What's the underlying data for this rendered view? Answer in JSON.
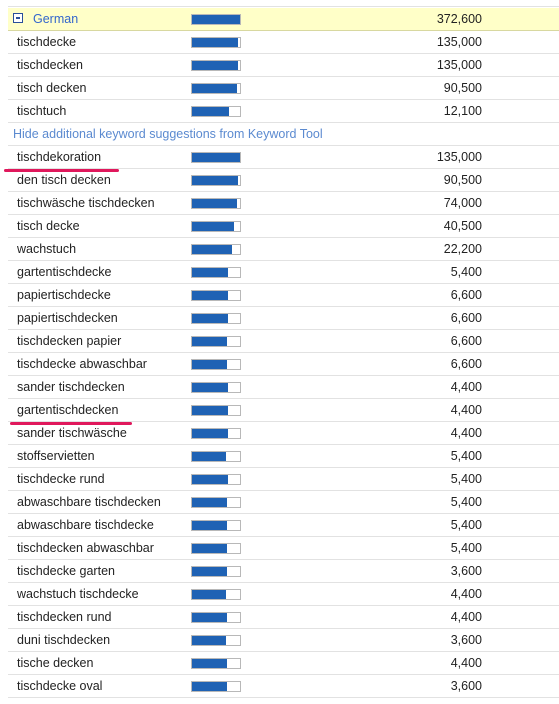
{
  "header": {
    "label": "German",
    "bar": 1.0,
    "searches": "372,600"
  },
  "rows": [
    {
      "keyword": "tischdecke",
      "bar": 0.96,
      "searches": "135,000"
    },
    {
      "keyword": "tischdecken",
      "bar": 0.96,
      "searches": "135,000"
    },
    {
      "keyword": "tisch decken",
      "bar": 0.94,
      "searches": "90,500"
    },
    {
      "keyword": "tischtuch",
      "bar": 0.78,
      "searches": "12,100"
    }
  ],
  "link": "Hide additional keyword suggestions from Keyword Tool",
  "suggestions": [
    {
      "keyword": "tischdekoration",
      "bar": 1.0,
      "searches": "135,000"
    },
    {
      "keyword": "den tisch decken",
      "bar": 0.96,
      "searches": "90,500"
    },
    {
      "keyword": "tischwäsche tischdecken",
      "bar": 0.94,
      "searches": "74,000"
    },
    {
      "keyword": "tisch decke",
      "bar": 0.88,
      "searches": "40,500"
    },
    {
      "keyword": "wachstuch",
      "bar": 0.84,
      "searches": "22,200"
    },
    {
      "keyword": "gartentischdecke",
      "bar": 0.74,
      "searches": "5,400"
    },
    {
      "keyword": "papiertischdecke",
      "bar": 0.74,
      "searches": "6,600"
    },
    {
      "keyword": "papiertischdecken",
      "bar": 0.74,
      "searches": "6,600"
    },
    {
      "keyword": "tischdecken papier",
      "bar": 0.72,
      "searches": "6,600"
    },
    {
      "keyword": "tischdecke abwaschbar",
      "bar": 0.72,
      "searches": "6,600"
    },
    {
      "keyword": "sander tischdecken",
      "bar": 0.74,
      "searches": "4,400"
    },
    {
      "keyword": "gartentischdecken",
      "bar": 0.74,
      "searches": "4,400"
    },
    {
      "keyword": "sander tischwäsche",
      "bar": 0.74,
      "searches": "4,400"
    },
    {
      "keyword": "stoffservietten",
      "bar": 0.7,
      "searches": "5,400"
    },
    {
      "keyword": "tischdecke rund",
      "bar": 0.74,
      "searches": "5,400"
    },
    {
      "keyword": "abwaschbare tischdecken",
      "bar": 0.72,
      "searches": "5,400"
    },
    {
      "keyword": "abwaschbare tischdecke",
      "bar": 0.72,
      "searches": "5,400"
    },
    {
      "keyword": "tischdecken abwaschbar",
      "bar": 0.72,
      "searches": "5,400"
    },
    {
      "keyword": "tischdecke garten",
      "bar": 0.72,
      "searches": "3,600"
    },
    {
      "keyword": "wachstuch tischdecke",
      "bar": 0.7,
      "searches": "4,400"
    },
    {
      "keyword": "tischdecken rund",
      "bar": 0.72,
      "searches": "4,400"
    },
    {
      "keyword": "duni tischdecken",
      "bar": 0.7,
      "searches": "3,600"
    },
    {
      "keyword": "tische decken",
      "bar": 0.72,
      "searches": "4,400"
    },
    {
      "keyword": "tischdecke oval",
      "bar": 0.72,
      "searches": "3,600"
    }
  ]
}
